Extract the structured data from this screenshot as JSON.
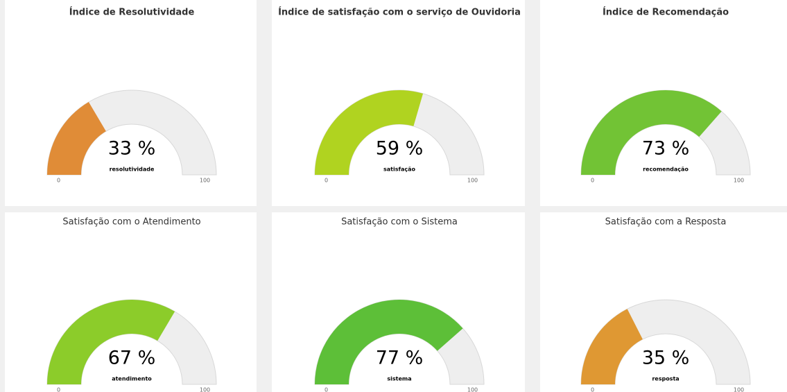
{
  "chart_data": [
    {
      "type": "gauge",
      "title": "Índice de Resolutividade",
      "name": "resolutividade",
      "values": [
        33
      ],
      "value_labels": [
        "33 %"
      ],
      "color": "#e08c37",
      "ylim": [
        0,
        100
      ],
      "yticks": [
        0,
        100
      ],
      "title_bold": true
    },
    {
      "type": "gauge",
      "title": "Índice de satisfação com o serviço de Ouvidoria",
      "name": "satisfação",
      "values": [
        59
      ],
      "value_labels": [
        "59 %"
      ],
      "color": "#b0d320",
      "ylim": [
        0,
        100
      ],
      "yticks": [
        0,
        100
      ],
      "title_bold": true
    },
    {
      "type": "gauge",
      "title": "Índice de Recomendação",
      "name": "recomendação",
      "values": [
        73
      ],
      "value_labels": [
        "73 %"
      ],
      "color": "#72c335",
      "ylim": [
        0,
        100
      ],
      "yticks": [
        0,
        100
      ],
      "title_bold": true
    },
    {
      "type": "gauge",
      "title": "Satisfação com o Atendimento",
      "name": "atendimento",
      "values": [
        67
      ],
      "value_labels": [
        "67 %"
      ],
      "color": "#8ccc2a",
      "ylim": [
        0,
        100
      ],
      "yticks": [
        0,
        100
      ],
      "title_bold": false
    },
    {
      "type": "gauge",
      "title": "Satisfação com o Sistema",
      "name": "sistema",
      "values": [
        77
      ],
      "value_labels": [
        "77 %"
      ],
      "color": "#5dbf38",
      "ylim": [
        0,
        100
      ],
      "yticks": [
        0,
        100
      ],
      "title_bold": false
    },
    {
      "type": "gauge",
      "title": "Satisfação com a Resposta",
      "name": "resposta",
      "values": [
        35
      ],
      "value_labels": [
        "35 %"
      ],
      "color": "#df9833",
      "ylim": [
        0,
        100
      ],
      "yticks": [
        0,
        100
      ],
      "title_bold": false
    }
  ]
}
